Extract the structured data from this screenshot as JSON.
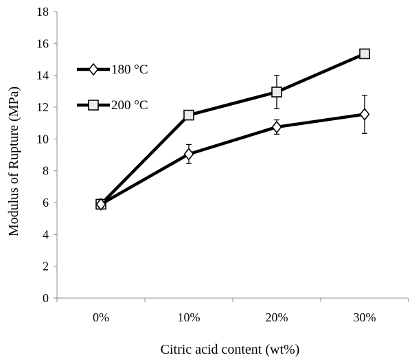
{
  "chart_data": {
    "type": "line",
    "title": "",
    "xlabel": "Citric acid content (wt%)",
    "ylabel": "Modulus of Rupture (MPa)",
    "categories": [
      "0%",
      "10%",
      "20%",
      "30%"
    ],
    "ylim": [
      0,
      18
    ],
    "yticks": [
      0,
      2,
      4,
      6,
      8,
      10,
      12,
      14,
      16,
      18
    ],
    "grid": false,
    "legend_position": "top-left",
    "series": [
      {
        "name": "180 °C",
        "marker": "diamond",
        "color": "#000000",
        "values": [
          5.9,
          9.05,
          10.75,
          11.55
        ],
        "error": [
          0.2,
          0.6,
          0.45,
          1.2
        ]
      },
      {
        "name": "200 °C",
        "marker": "square",
        "color": "#000000",
        "values": [
          5.9,
          11.5,
          12.95,
          15.35
        ],
        "error": [
          0.15,
          0.0,
          1.05,
          0.0
        ]
      }
    ]
  }
}
